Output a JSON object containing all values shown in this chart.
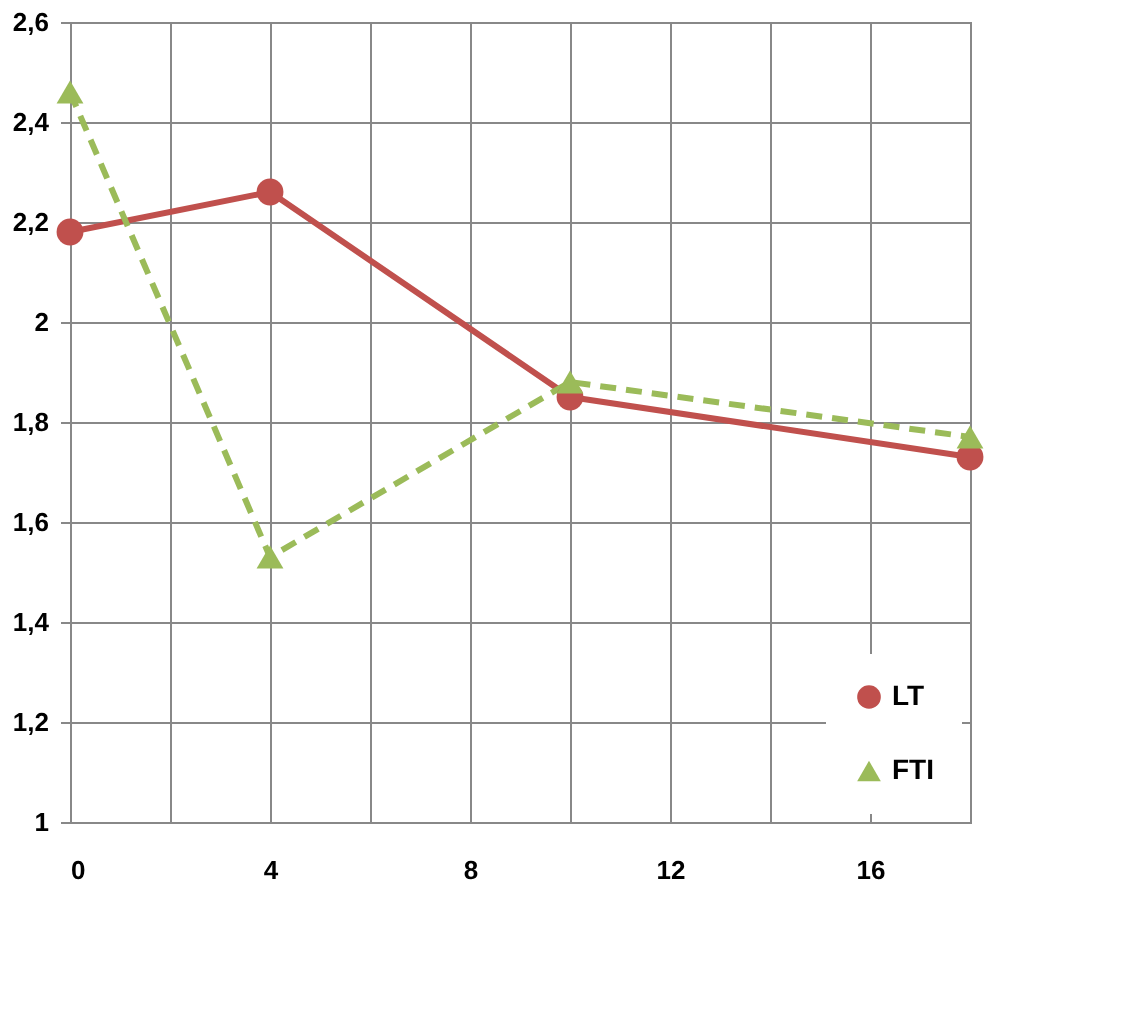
{
  "chart_data": {
    "type": "line",
    "x": [
      0,
      4,
      10,
      18
    ],
    "series": [
      {
        "name": "LT",
        "color": "#c0504d",
        "values": [
          2.18,
          2.26,
          1.85,
          1.73
        ],
        "marker": "circle",
        "line_style": "solid"
      },
      {
        "name": "FTI",
        "color": "#9bbb59",
        "values": [
          2.46,
          1.53,
          1.88,
          1.77
        ],
        "marker": "triangle",
        "line_style": "dashed"
      }
    ],
    "xlim": [
      0,
      18
    ],
    "xticks": [
      0,
      {
        "value": 2,
        "label": null
      },
      4,
      {
        "value": 6,
        "label": null
      },
      8,
      {
        "value": 10,
        "label": null
      },
      12,
      {
        "value": 14,
        "label": null
      },
      16,
      {
        "value": 18,
        "label": null
      }
    ],
    "ylim": [
      1,
      2.6
    ],
    "yticks": [
      1,
      {
        "value": 1.2,
        "label": "1,2"
      },
      {
        "value": 1.4,
        "label": "1,4"
      },
      {
        "value": 1.6,
        "label": "1,6"
      },
      {
        "value": 1.8,
        "label": "1,8"
      },
      2,
      {
        "value": 2.2,
        "label": "2,2"
      },
      {
        "value": 2.4,
        "label": "2,4"
      },
      {
        "value": 2.6,
        "label": "2,6"
      }
    ],
    "grid": true,
    "legend": "bottom right"
  }
}
